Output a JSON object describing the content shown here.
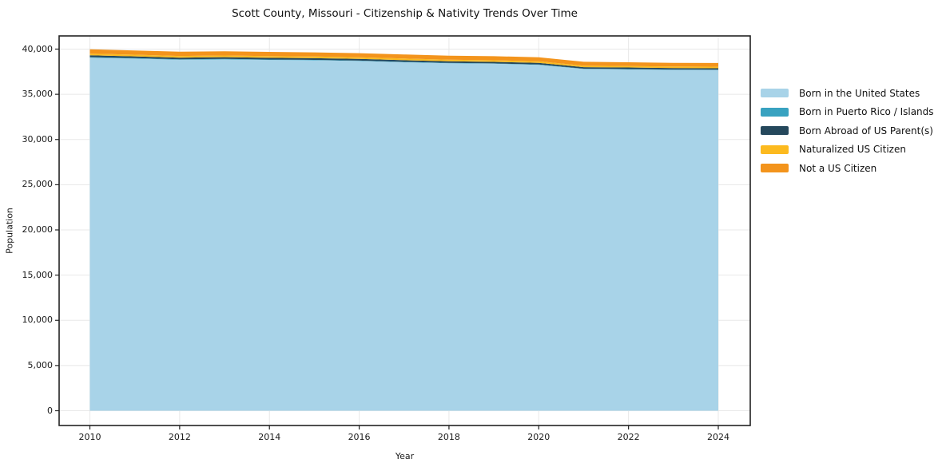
{
  "title": "Scott County, Missouri - Citizenship & Nativity Trends Over Time",
  "axes": {
    "x_label": "Year",
    "y_label": "Population",
    "x_ticks": [
      "2010",
      "2012",
      "2014",
      "2016",
      "2018",
      "2020",
      "2022",
      "2024"
    ],
    "y_ticks": [
      "0",
      "5,000",
      "10,000",
      "15,000",
      "20,000",
      "25,000",
      "30,000",
      "35,000",
      "40,000"
    ]
  },
  "chart_data": {
    "type": "area",
    "stacked": true,
    "title": "Scott County, Missouri - Citizenship & Nativity Trends Over Time",
    "xlabel": "Year",
    "ylabel": "Population",
    "grid": true,
    "legend_position": "right-of-plot",
    "x": [
      2010,
      2011,
      2012,
      2013,
      2014,
      2015,
      2016,
      2017,
      2018,
      2019,
      2020,
      2021,
      2022,
      2023,
      2024
    ],
    "x_tick_values": [
      2010,
      2012,
      2014,
      2016,
      2018,
      2020,
      2022,
      2024
    ],
    "y_tick_values": [
      0,
      5000,
      10000,
      15000,
      20000,
      25000,
      30000,
      35000,
      40000
    ],
    "xlim": [
      2009.3,
      2024.7
    ],
    "ylim": [
      0,
      40000
    ],
    "series": [
      {
        "name": "Born in the United States",
        "color": "#a8d3e8",
        "values": [
          39050,
          38950,
          38820,
          38860,
          38800,
          38760,
          38680,
          38540,
          38430,
          38380,
          38250,
          37800,
          37750,
          37700,
          37680
        ]
      },
      {
        "name": "Born in Puerto Rico / Islands",
        "color": "#38a2c0",
        "values": [
          60,
          55,
          50,
          55,
          50,
          50,
          45,
          50,
          45,
          40,
          45,
          40,
          45,
          40,
          45
        ]
      },
      {
        "name": "Born Abroad of US Parent(s)",
        "color": "#25485c",
        "values": [
          200,
          190,
          185,
          190,
          185,
          180,
          185,
          180,
          175,
          170,
          175,
          165,
          170,
          165,
          160
        ]
      },
      {
        "name": "Naturalized US Citizen",
        "color": "#fcba1f",
        "values": [
          190,
          185,
          190,
          185,
          190,
          185,
          180,
          185,
          180,
          175,
          180,
          170,
          165,
          170,
          165
        ]
      },
      {
        "name": "Not a US Citizen",
        "color": "#f3941c",
        "values": [
          480,
          470,
          460,
          465,
          470,
          465,
          460,
          450,
          445,
          450,
          445,
          420,
          415,
          410,
          415
        ]
      }
    ]
  }
}
